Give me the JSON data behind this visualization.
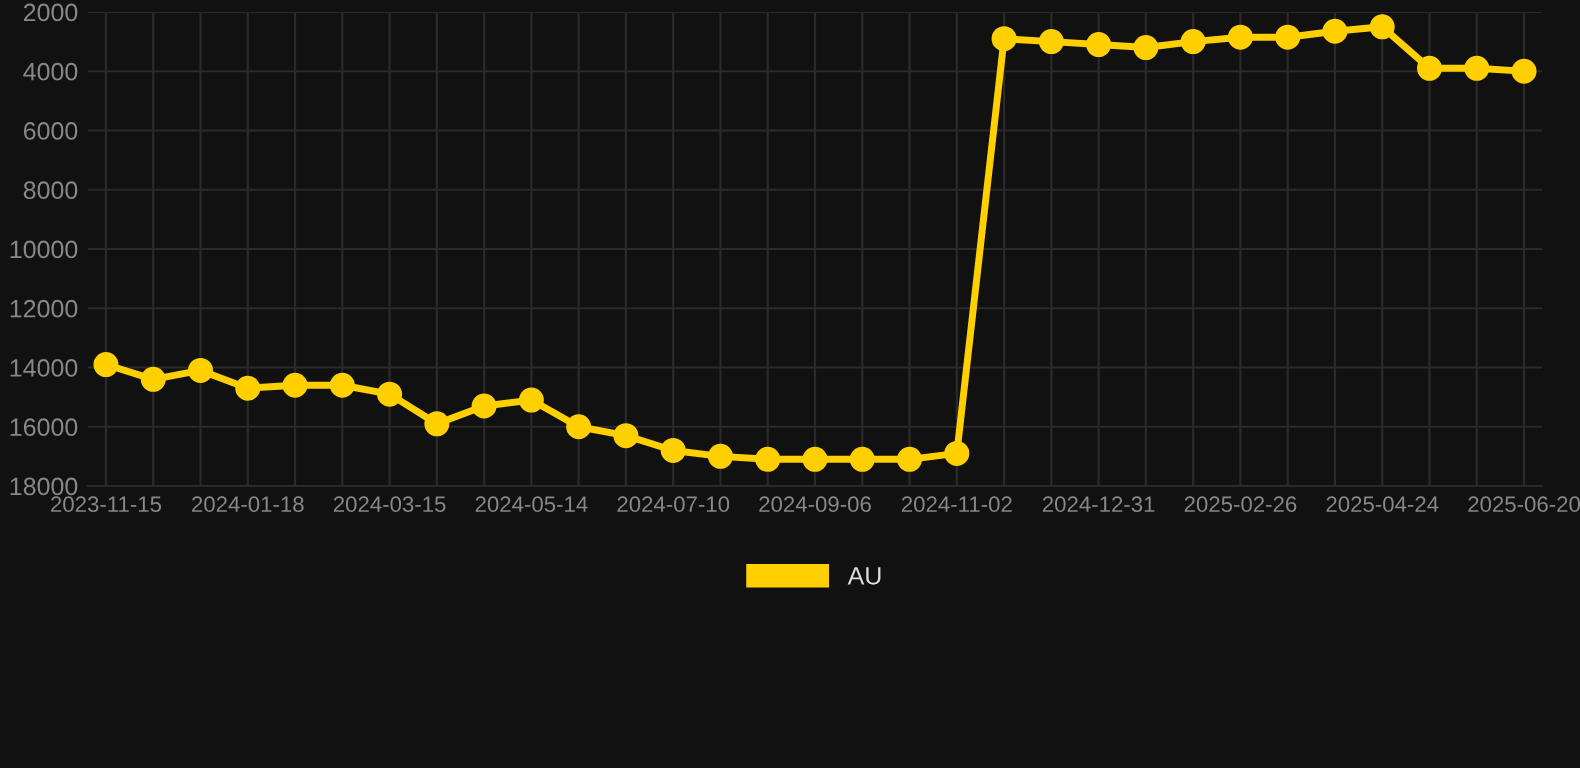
{
  "chart_data": {
    "type": "line",
    "categories": [
      "2023-11-15",
      null,
      null,
      "2024-01-18",
      null,
      null,
      "2024-03-15",
      null,
      null,
      "2024-05-14",
      null,
      null,
      "2024-07-10",
      null,
      null,
      "2024-09-06",
      null,
      null,
      "2024-11-02",
      null,
      null,
      "2024-12-31",
      null,
      null,
      "2025-02-26",
      null,
      null,
      "2025-04-24",
      null,
      null,
      "2025-06-20"
    ],
    "series": [
      {
        "name": "AU",
        "color": "#ffd000",
        "values": [
          13900,
          14400,
          14100,
          14700,
          14600,
          14600,
          14900,
          15900,
          15300,
          15100,
          16000,
          16300,
          16800,
          17000,
          17100,
          17100,
          17100,
          17100,
          16900,
          2900,
          3000,
          3100,
          3200,
          3000,
          2850,
          2850,
          2650,
          2500,
          3900,
          3900,
          4000
        ]
      }
    ],
    "ylim": [
      18000,
      2000
    ],
    "yticks": [
      2000,
      4000,
      6000,
      8000,
      10000,
      12000,
      14000,
      16000,
      18000
    ],
    "grid": true,
    "legend": "bottom",
    "marker": "circle",
    "line_style": "solid"
  }
}
